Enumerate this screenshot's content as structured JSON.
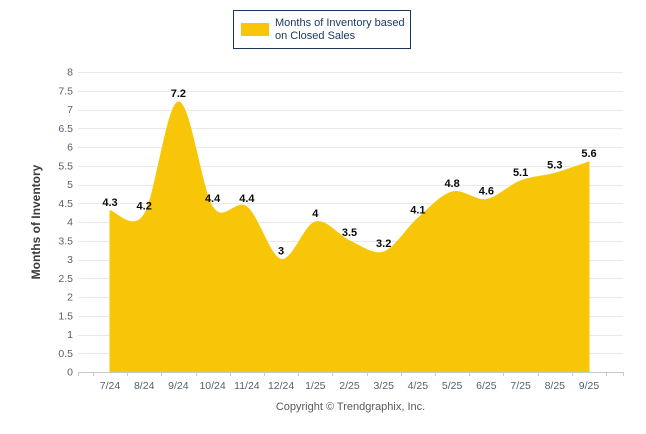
{
  "legend": {
    "line1": "Months of Inventory based",
    "line2": "on Closed Sales",
    "swatch_color": "#F8C608",
    "border_color": "#17375E",
    "text_color": "#17375E"
  },
  "footer": {
    "text": "Copyright © Trendgraphix, Inc."
  },
  "colors": {
    "series_fill": "#F8C608",
    "grid_line": "#E9E9E9",
    "axis_line": "#C8C8C8",
    "tick_text": "#55606E",
    "data_label_text": "#0a0a0a",
    "footer_text": "#595959"
  },
  "chart_data": {
    "type": "area",
    "categories": [
      "7/24",
      "8/24",
      "9/24",
      "10/24",
      "11/24",
      "12/24",
      "1/25",
      "2/25",
      "3/25",
      "4/25",
      "5/25",
      "6/25",
      "7/25",
      "8/25",
      "9/25"
    ],
    "values": [
      4.3,
      4.2,
      7.2,
      4.4,
      4.4,
      3,
      4,
      3.5,
      3.2,
      4.1,
      4.8,
      4.6,
      5.1,
      5.3,
      5.6
    ],
    "title": "",
    "legend": "Months of Inventory based on Closed Sales",
    "xlabel": "",
    "ylabel": "Months of Inventory",
    "ylim": [
      0,
      8
    ],
    "y_tick_step": 0.5,
    "grid": true,
    "smooth": true,
    "legend_position": "top-center",
    "point_labels_shown": true
  }
}
